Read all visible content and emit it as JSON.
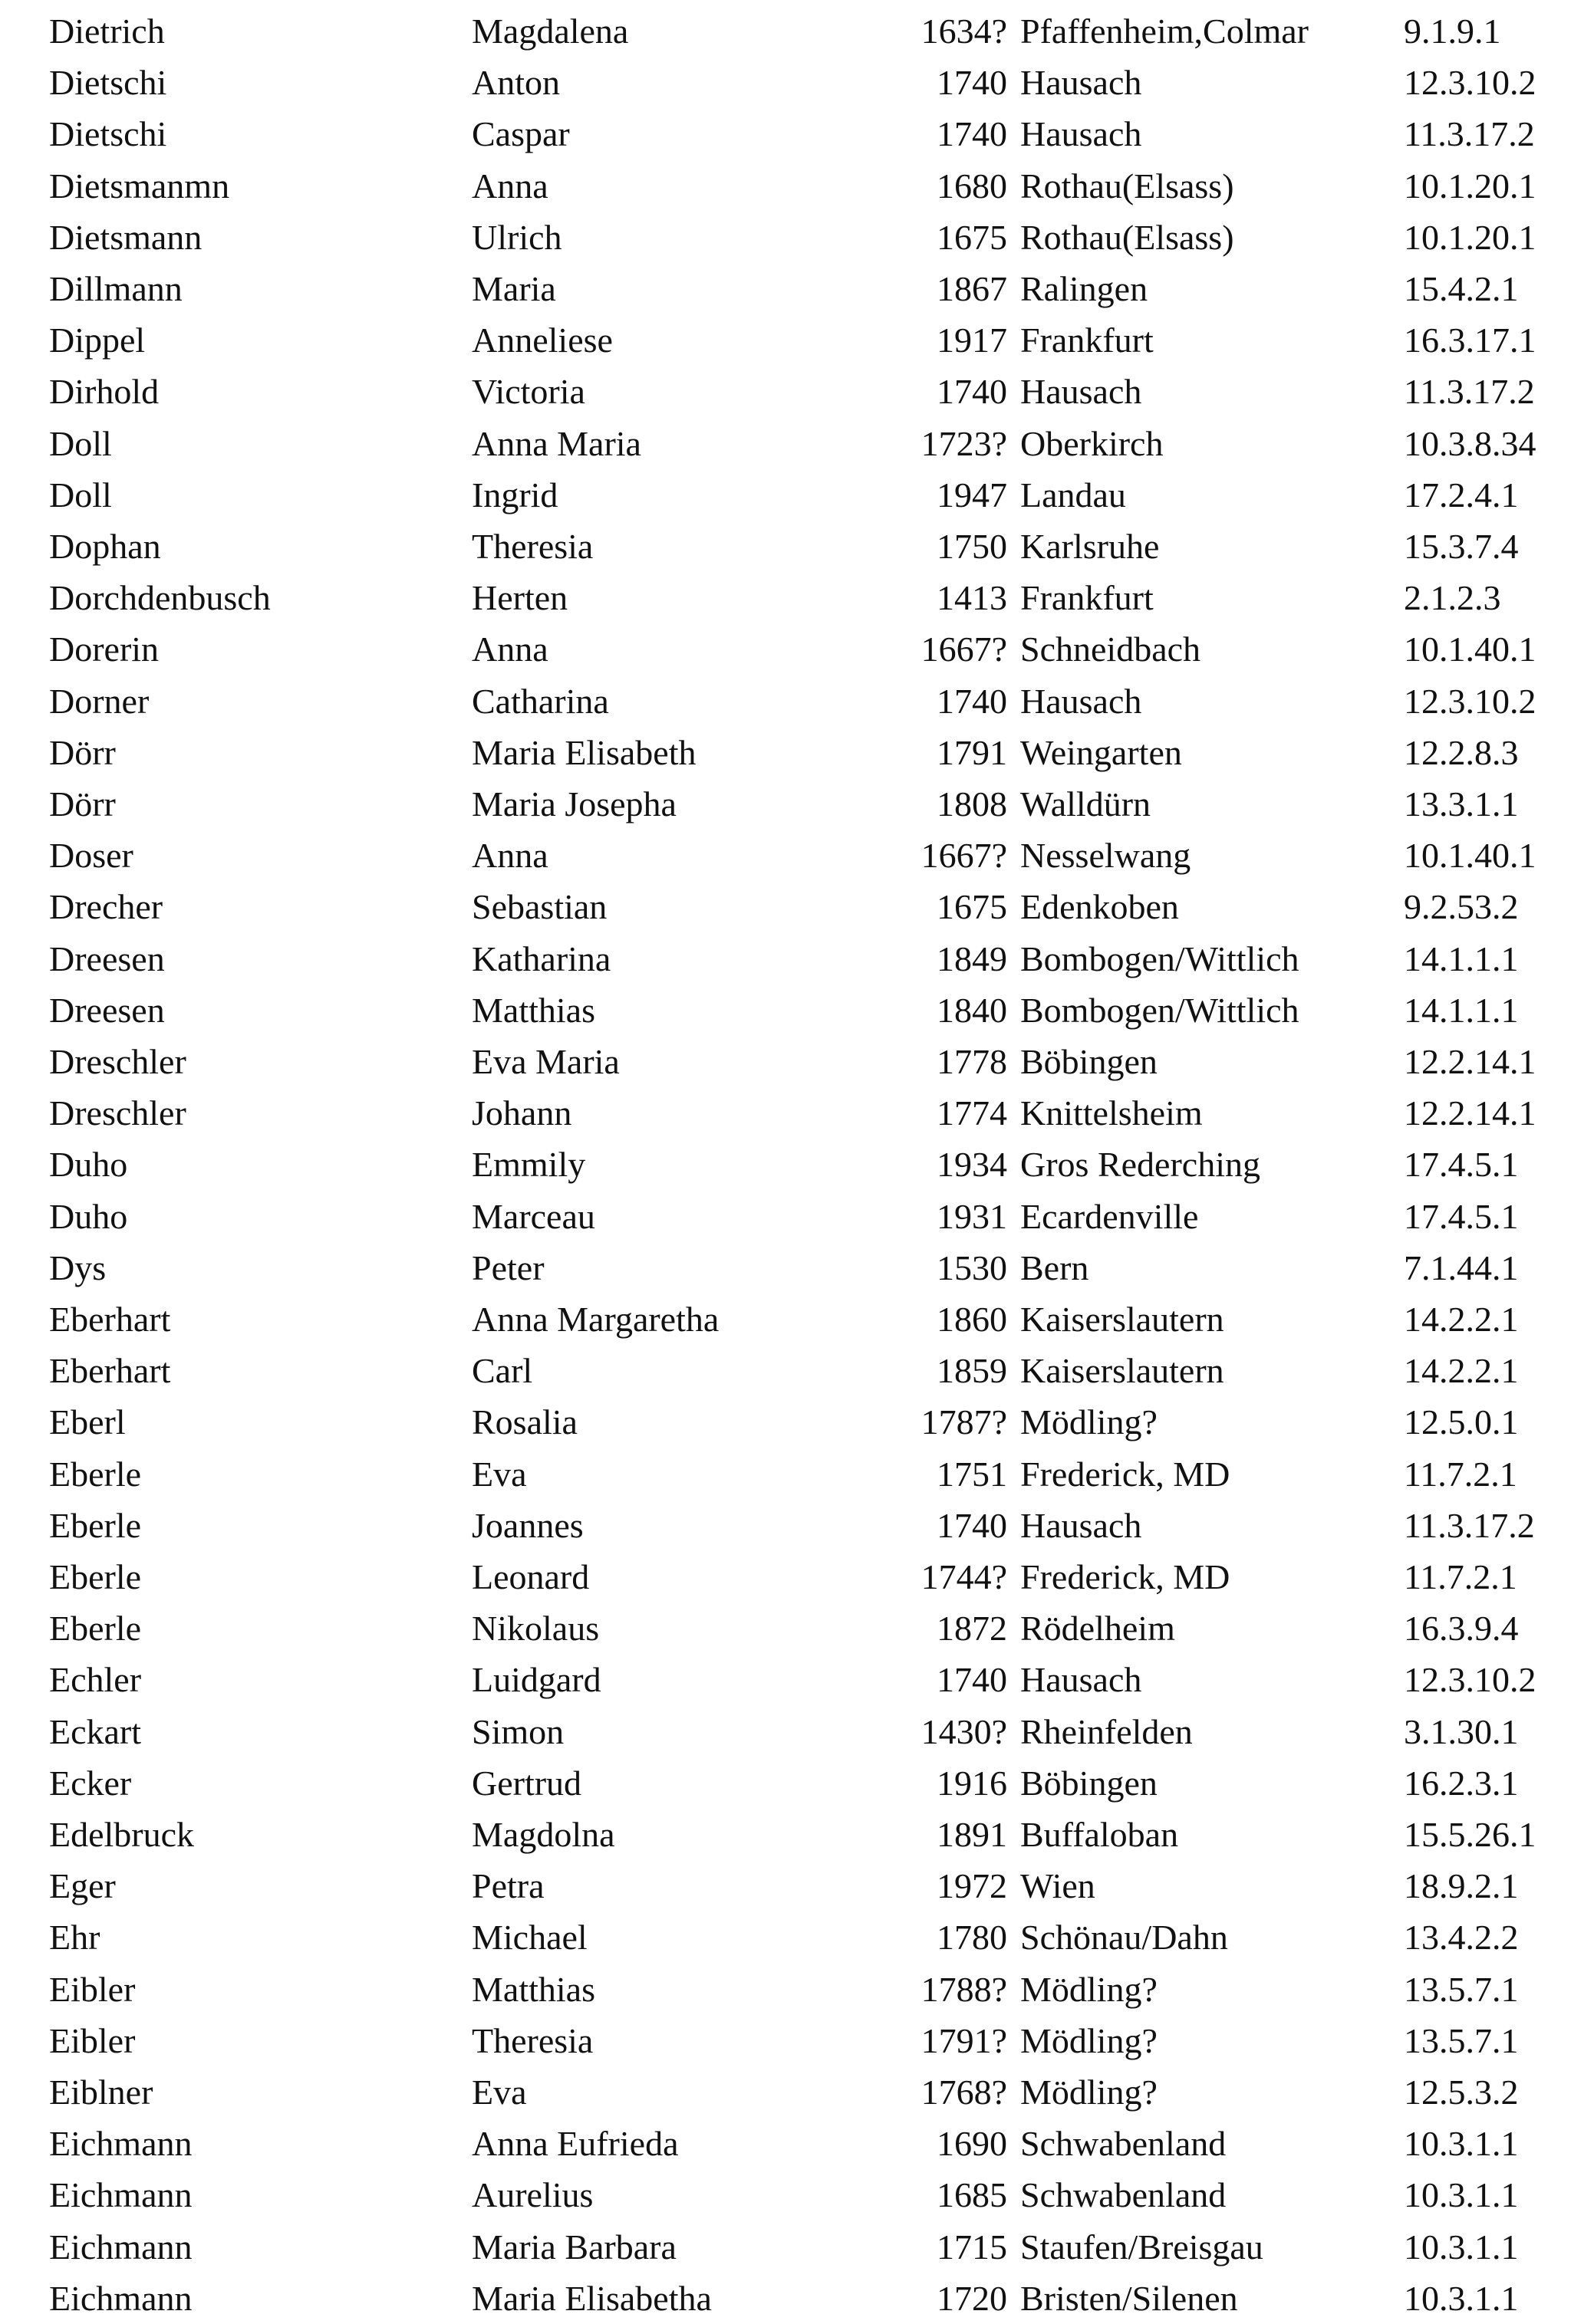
{
  "rows": [
    [
      "Dietrich",
      "Magdalena",
      "1634?",
      "Pfaffenheim,Colmar",
      "9.1.9.1"
    ],
    [
      "Dietschi",
      "Anton",
      "1740",
      "Hausach",
      "12.3.10.2"
    ],
    [
      "Dietschi",
      "Caspar",
      "1740",
      "Hausach",
      "11.3.17.2"
    ],
    [
      "Dietsmanmn",
      "Anna",
      "1680",
      "Rothau(Elsass)",
      "10.1.20.1"
    ],
    [
      "Dietsmann",
      "Ulrich",
      "1675",
      "Rothau(Elsass)",
      "10.1.20.1"
    ],
    [
      "Dillmann",
      "Maria",
      "1867",
      "Ralingen",
      "15.4.2.1"
    ],
    [
      "Dippel",
      "Anneliese",
      "1917",
      "Frankfurt",
      "16.3.17.1"
    ],
    [
      "Dirhold",
      "Victoria",
      "1740",
      "Hausach",
      "11.3.17.2"
    ],
    [
      "Doll",
      "Anna Maria",
      "1723?",
      "Oberkirch",
      "10.3.8.34"
    ],
    [
      "Doll",
      "Ingrid",
      "1947",
      "Landau",
      "17.2.4.1"
    ],
    [
      "Dophan",
      "Theresia",
      "1750",
      "Karlsruhe",
      "15.3.7.4"
    ],
    [
      "Dorchdenbusch",
      "Herten",
      "1413",
      "Frankfurt",
      "2.1.2.3"
    ],
    [
      "Dorerin",
      "Anna",
      "1667?",
      "Schneidbach",
      "10.1.40.1"
    ],
    [
      "Dorner",
      "Catharina",
      "1740",
      "Hausach",
      "12.3.10.2"
    ],
    [
      "Dörr",
      "Maria Elisabeth",
      "1791",
      "Weingarten",
      "12.2.8.3"
    ],
    [
      "Dörr",
      "Maria Josepha",
      "1808",
      "Walldürn",
      "13.3.1.1"
    ],
    [
      "Doser",
      "Anna",
      "1667?",
      "Nesselwang",
      "10.1.40.1"
    ],
    [
      "Drecher",
      "Sebastian",
      "1675",
      "Edenkoben",
      "9.2.53.2"
    ],
    [
      "Dreesen",
      "Katharina",
      "1849",
      "Bombogen/Wittlich",
      "14.1.1.1"
    ],
    [
      "Dreesen",
      "Matthias",
      "1840",
      "Bombogen/Wittlich",
      "14.1.1.1"
    ],
    [
      "Dreschler",
      "Eva Maria",
      "1778",
      "Böbingen",
      "12.2.14.1"
    ],
    [
      "Dreschler",
      "Johann",
      "1774",
      "Knittelsheim",
      "12.2.14.1"
    ],
    [
      "Duho",
      "Emmily",
      "1934",
      "Gros Rederching",
      "17.4.5.1"
    ],
    [
      "Duho",
      "Marceau",
      "1931",
      "Ecardenville",
      "17.4.5.1"
    ],
    [
      "Dys",
      "Peter",
      "1530",
      "Bern",
      "7.1.44.1"
    ],
    [
      "Eberhart",
      "Anna Margaretha",
      "1860",
      "Kaiserslautern",
      "14.2.2.1"
    ],
    [
      "Eberhart",
      "Carl",
      "1859",
      "Kaiserslautern",
      "14.2.2.1"
    ],
    [
      "Eberl",
      "Rosalia",
      "1787?",
      "Mödling?",
      "12.5.0.1"
    ],
    [
      "Eberle",
      "Eva",
      "1751",
      "Frederick, MD",
      "11.7.2.1"
    ],
    [
      "Eberle",
      "Joannes",
      "1740",
      "Hausach",
      "11.3.17.2"
    ],
    [
      "Eberle",
      "Leonard",
      "1744?",
      "Frederick, MD",
      "11.7.2.1"
    ],
    [
      "Eberle",
      "Nikolaus",
      "1872",
      "Rödelheim",
      "16.3.9.4"
    ],
    [
      "Echler",
      "Luidgard",
      "1740",
      "Hausach",
      "12.3.10.2"
    ],
    [
      "Eckart",
      "Simon",
      "1430?",
      "Rheinfelden",
      "3.1.30.1"
    ],
    [
      "Ecker",
      "Gertrud",
      "1916",
      "Böbingen",
      "16.2.3.1"
    ],
    [
      "Edelbruck",
      "Magdolna",
      "1891",
      "Buffaloban",
      "15.5.26.1"
    ],
    [
      "Eger",
      "Petra",
      "1972",
      "Wien",
      "18.9.2.1"
    ],
    [
      "Ehr",
      "Michael",
      "1780",
      "Schönau/Dahn",
      "13.4.2.2"
    ],
    [
      "Eibler",
      "Matthias",
      "1788?",
      "Mödling?",
      "13.5.7.1"
    ],
    [
      "Eibler",
      "Theresia",
      "1791?",
      "Mödling?",
      "13.5.7.1"
    ],
    [
      "Eiblner",
      "Eva",
      "1768?",
      "Mödling?",
      "12.5.3.2"
    ],
    [
      "Eichmann",
      "Anna Eufrieda",
      "1690",
      "Schwabenland",
      "10.3.1.1"
    ],
    [
      "Eichmann",
      "Aurelius",
      "1685",
      "Schwabenland",
      "10.3.1.1"
    ],
    [
      "Eichmann",
      "Maria Barbara",
      "1715",
      "Staufen/Breisgau",
      "10.3.1.1"
    ],
    [
      "Eichmann",
      "Maria Elisabetha",
      "1720",
      "Bristen/Silenen",
      "10.3.1.1"
    ]
  ]
}
